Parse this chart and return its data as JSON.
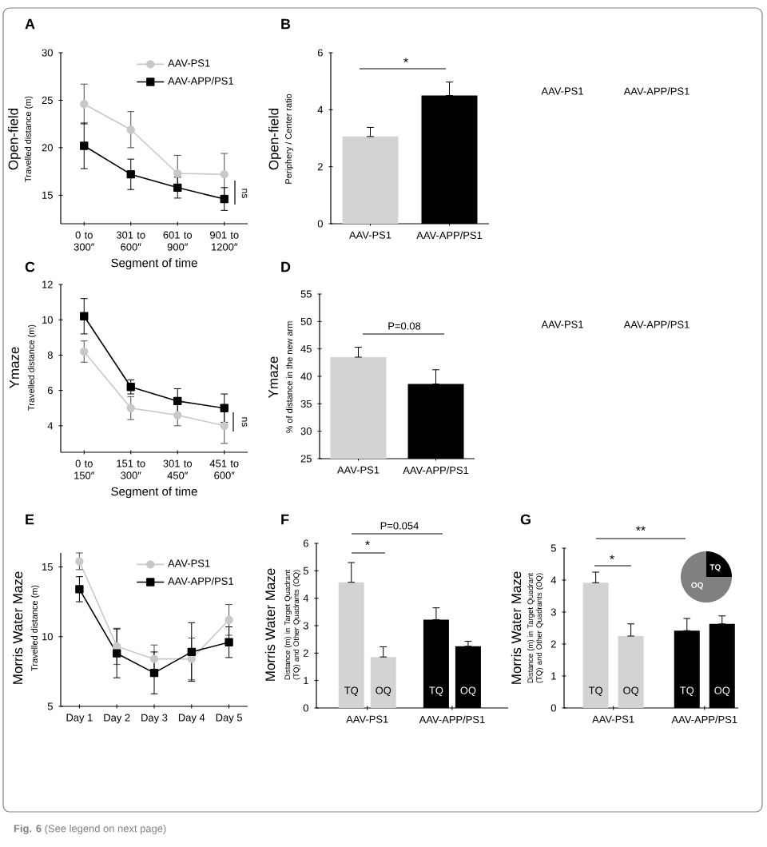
{
  "chart_data": [
    {
      "type": "line",
      "title": "A",
      "xlabel": "Segment of time",
      "ylabel": "Open-field",
      "annotations": [
        "Travelled distance (m)",
        "ns"
      ],
      "categories": [
        "0 to 300″",
        "301 to 600″",
        "601 to 900″",
        "901 to 1200″"
      ],
      "ylim": [
        12,
        30
      ],
      "yticks": [
        15,
        20,
        25,
        30
      ],
      "legend": "top right",
      "series": [
        {
          "name": "AAV-PS1",
          "color": "#c8c8c8",
          "marker": "circle",
          "values": [
            24.6,
            21.9,
            17.3,
            17.2
          ],
          "errors": [
            2.1,
            1.9,
            1.9,
            2.2
          ]
        },
        {
          "name": "AAV-APP/PS1",
          "color": "#000000",
          "marker": "square",
          "values": [
            20.2,
            17.2,
            15.8,
            14.6
          ],
          "errors": [
            2.4,
            1.6,
            1.1,
            1.2
          ]
        }
      ]
    },
    {
      "type": "bar",
      "title": "B",
      "ylabel": "Open-field",
      "annotations": [
        "Periphery / Center ratio",
        "*",
        "AAV-PS1",
        "AAV-APP/PS1"
      ],
      "categories": [
        "AAV-PS1",
        "AAV-APP/PS1"
      ],
      "ylim": [
        0,
        6
      ],
      "yticks": [
        0,
        2,
        4,
        6
      ],
      "values": [
        3.06,
        4.5
      ],
      "colors": [
        "#d3d3d3",
        "#000000"
      ],
      "errors": [
        [
          3.06,
          3.38
        ],
        [
          4.5,
          4.97
        ]
      ]
    },
    {
      "type": "line",
      "title": "C",
      "xlabel": "Segment of time",
      "ylabel": "Ymaze",
      "annotations": [
        "Travelled distance (m)",
        "ns"
      ],
      "categories": [
        "0 to 150″",
        "151 to 300″",
        "301 to 450″",
        "451 to 600″"
      ],
      "ylim": [
        2.5,
        12
      ],
      "yticks": [
        4,
        6,
        8,
        10,
        12
      ],
      "series": [
        {
          "color": "#c8c8c8",
          "marker": "circle",
          "values": [
            8.2,
            5.0,
            4.6,
            4.0
          ],
          "errors": [
            0.6,
            0.65,
            0.6,
            1.0
          ]
        },
        {
          "color": "#000000",
          "marker": "square",
          "values": [
            10.2,
            6.2,
            5.4,
            5.0
          ],
          "errors": [
            1.0,
            0.4,
            0.7,
            0.8
          ]
        }
      ]
    },
    {
      "type": "bar",
      "title": "D",
      "ylabel": "Ymaze",
      "annotations": [
        "% of distance in the new arm",
        "P=0.08",
        "AAV-PS1",
        "AAV-APP/PS1"
      ],
      "categories": [
        "AAV-PS1",
        "AAV-APP/PS1"
      ],
      "ylim": [
        25,
        55
      ],
      "yticks": [
        25,
        30,
        35,
        40,
        45,
        50,
        55
      ],
      "values": [
        43.5,
        38.6
      ],
      "colors": [
        "#d3d3d3",
        "#000000"
      ],
      "errors": [
        [
          43.5,
          45.3
        ],
        [
          38.6,
          41.2
        ]
      ]
    },
    {
      "type": "line",
      "title": "E",
      "ylabel": "Morris Water Maze",
      "annotations": [
        "Travelled distance (m)"
      ],
      "categories": [
        "Day 1",
        "Day 2",
        "Day 3",
        "Day 4",
        "Day 5"
      ],
      "ylim": [
        5,
        16
      ],
      "yticks": [
        5,
        10,
        15
      ],
      "legend": "top right",
      "series": [
        {
          "name": "AAV-PS1",
          "color": "#c8c8c8",
          "marker": "circle",
          "values": [
            15.4,
            9.3,
            8.4,
            8.4,
            11.2
          ],
          "errors": [
            0.6,
            1.3,
            1.0,
            1.5,
            1.1
          ]
        },
        {
          "name": "AAV-APP/PS1",
          "color": "#000000",
          "marker": "square",
          "values": [
            13.4,
            8.8,
            7.4,
            8.9,
            9.6
          ],
          "errors": [
            0.9,
            1.75,
            1.5,
            2.1,
            1.1
          ]
        }
      ]
    },
    {
      "type": "bar",
      "title": "F",
      "ylabel": "Morris Water Maze",
      "annotations": [
        "Distance (m) in Target Quadrant (TQ) and Other Quadrants (OQ)",
        "*",
        "P=0.054"
      ],
      "categories": [
        "AAV-PS1",
        "AAV-APP/PS1"
      ],
      "ylim": [
        0,
        6
      ],
      "yticks": [
        0,
        1,
        2,
        3,
        4,
        5,
        6
      ],
      "series": [
        {
          "name": "TQ",
          "colors": [
            "#d3d3d3",
            "#000000"
          ],
          "values": [
            4.58,
            3.22
          ],
          "errors": [
            [
              4.58,
              5.3
            ],
            [
              3.22,
              3.65
            ]
          ]
        },
        {
          "name": "OQ",
          "colors": [
            "#d3d3d3",
            "#000000"
          ],
          "values": [
            1.86,
            2.25
          ],
          "errors": [
            [
              1.86,
              2.23
            ],
            [
              2.25,
              2.43
            ]
          ]
        }
      ]
    },
    {
      "type": "bar",
      "title": "G",
      "ylabel": "Morris Water Maze",
      "annotations": [
        "Distance (m) in Target Quadrant (TQ) and Other Quadrants (OQ)",
        "*",
        "**",
        "**Fig. 6** (See legend on next page)"
      ],
      "categories": [
        "AAV-PS1",
        "AAV-APP/PS1"
      ],
      "ylim": [
        0,
        5
      ],
      "yticks": [
        0,
        1,
        2,
        3,
        4,
        5
      ],
      "series": [
        {
          "name": "TQ",
          "colors": [
            "#d3d3d3",
            "#000000"
          ],
          "values": [
            3.92,
            2.42
          ],
          "errors": [
            [
              3.92,
              4.25
            ],
            [
              2.42,
              2.8
            ]
          ]
        },
        {
          "name": "OQ",
          "colors": [
            "#d3d3d3",
            "#000000"
          ],
          "values": [
            2.25,
            2.63
          ],
          "errors": [
            [
              2.25,
              2.63
            ],
            [
              2.63,
              2.88
            ]
          ]
        }
      ]
    },
    {
      "type": "pie",
      "categories": [
        "TQ",
        "OQ"
      ],
      "values": [
        25,
        75
      ],
      "colors": [
        "#000000",
        "#808080"
      ]
    }
  ]
}
